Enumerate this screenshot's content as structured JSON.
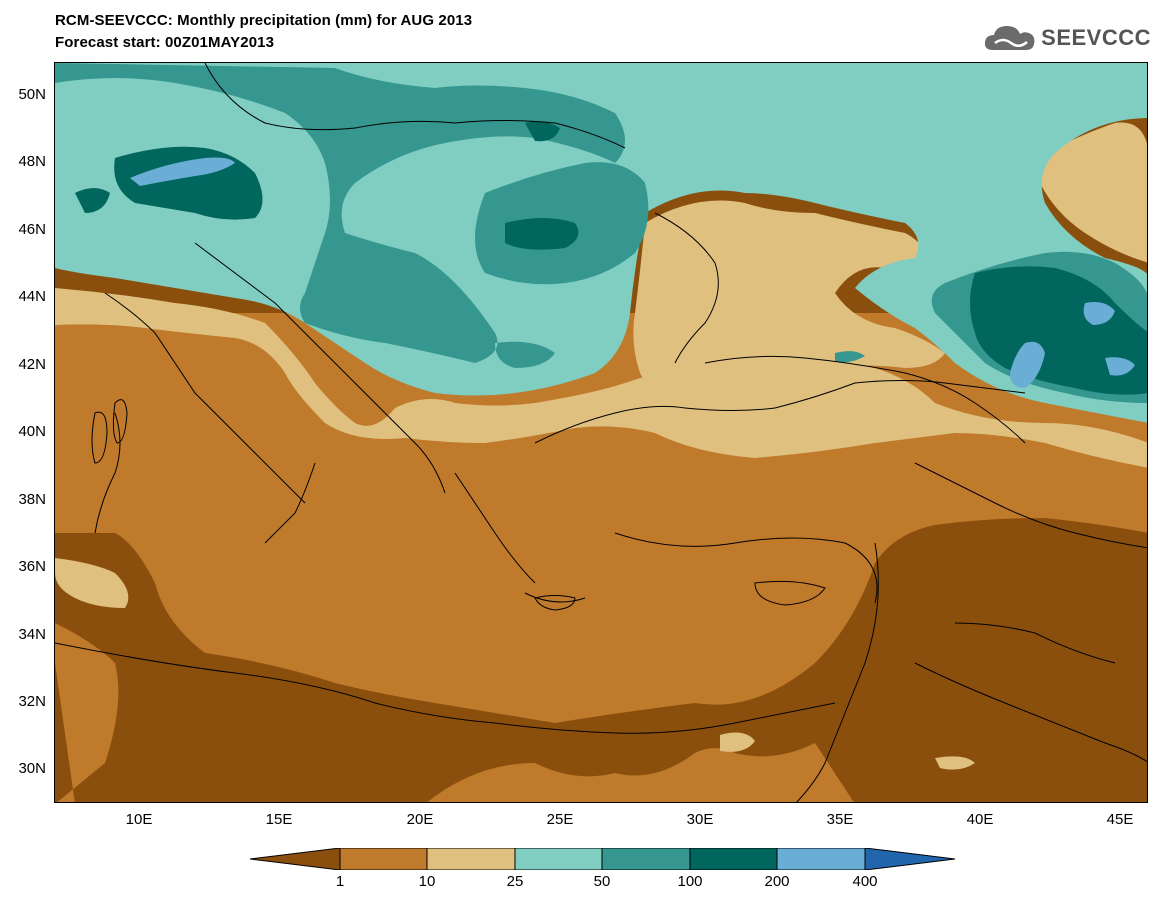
{
  "header": {
    "title_line1": "RCM-SEEVCCC: Monthly precipitation (mm) for AUG 2013",
    "title_line2": "Forecast start: 00Z01MAY2013",
    "logo_text": "SEEVCCC",
    "logo_icon": "cloud-icon"
  },
  "map": {
    "lat_labels": [
      "50N",
      "48N",
      "46N",
      "44N",
      "42N",
      "40N",
      "38N",
      "36N",
      "34N",
      "32N",
      "30N"
    ],
    "lon_labels": [
      "10E",
      "15E",
      "20E",
      "25E",
      "30E",
      "35E",
      "40E",
      "45E"
    ],
    "lat_range": [
      29,
      51
    ],
    "lon_range": [
      7,
      46
    ]
  },
  "legend": {
    "thresholds": [
      "1",
      "10",
      "25",
      "50",
      "100",
      "200",
      "400"
    ],
    "colors": [
      "#8b4f0d",
      "#bf7a2c",
      "#dfc07f",
      "#80cdc1",
      "#35978f",
      "#00665e",
      "#6aaed6",
      "#2166ac"
    ]
  }
}
